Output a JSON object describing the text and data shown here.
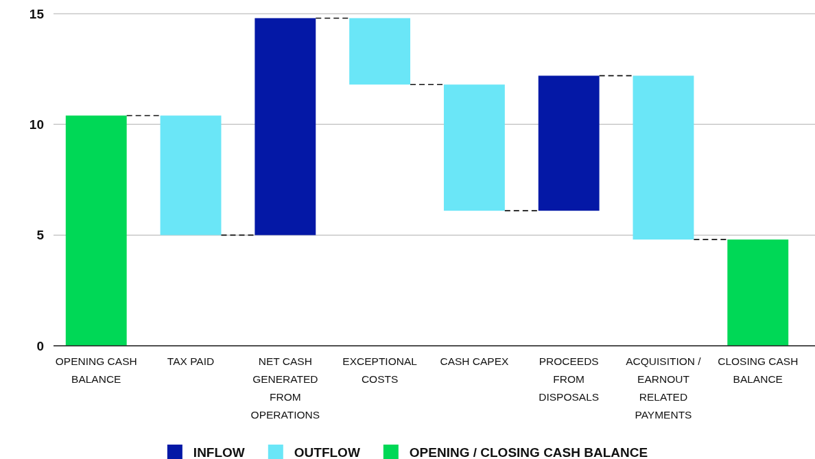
{
  "chart_data": {
    "type": "bar",
    "categories": [
      "OPENING CASH BALANCE",
      "TAX PAID",
      "NET CASH GENERATED FROM OPERATIONS",
      "EXCEPTIONAL COSTS",
      "CASH CAPEX",
      "PROCEEDS FROM DISPOSALS",
      "ACQUISITION / EARNOUT RELATED PAYMENTS",
      "CLOSING CASH BALANCE"
    ],
    "series": [
      {
        "name": "INFLOW",
        "color": "#0418a6",
        "base": [
          null,
          null,
          5.0,
          null,
          null,
          6.1,
          null,
          null
        ],
        "values": [
          null,
          null,
          9.8,
          null,
          null,
          6.1,
          null,
          null
        ]
      },
      {
        "name": "OUTFLOW",
        "color": "#6ae6f7",
        "base": [
          null,
          5.0,
          null,
          11.8,
          6.1,
          null,
          4.8,
          null
        ],
        "values": [
          null,
          5.4,
          null,
          3.0,
          5.7,
          null,
          7.4,
          null
        ]
      },
      {
        "name": "OPENING / CLOSING CASH BALANCE",
        "color": "#00d856",
        "values": [
          10.4,
          null,
          null,
          null,
          null,
          null,
          null,
          4.8
        ]
      }
    ],
    "ylim": [
      0,
      15
    ],
    "yticks": [
      0,
      5,
      10,
      15
    ],
    "grid": "y",
    "legend": "bottom"
  }
}
